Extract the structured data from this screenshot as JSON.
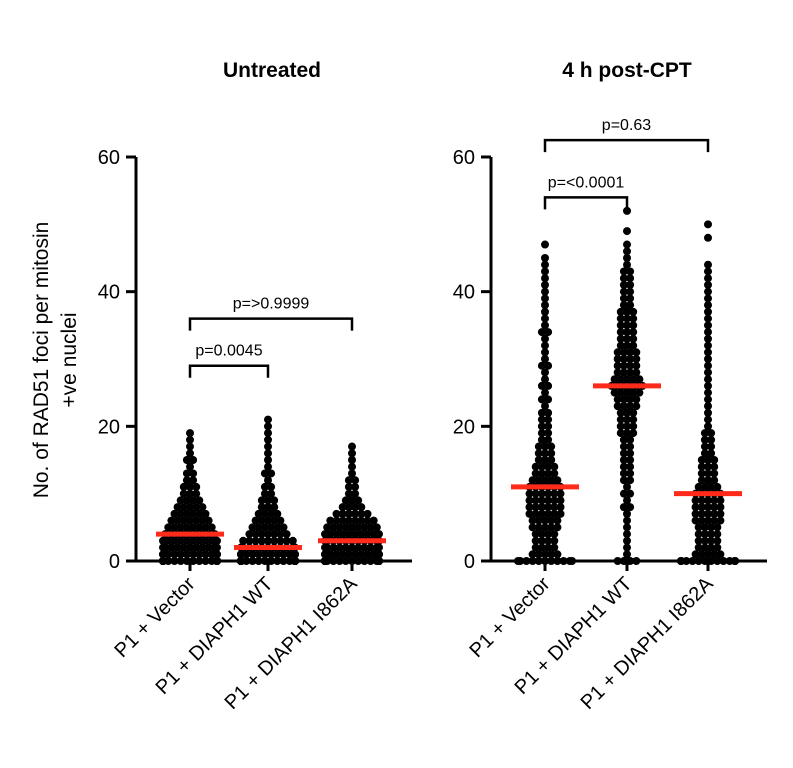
{
  "chart_data": {
    "type": "scatter",
    "ylabel": "No. of RAD51 foci per mitosin +ve nuclei",
    "ylabel_lines": [
      "No. of RAD51 foci per mitosin",
      "+ve nuclei"
    ],
    "ylim": [
      0,
      60
    ],
    "yticks": [
      0,
      20,
      40,
      60
    ],
    "dot_color": "#000000",
    "median_color": "#ff2a1a",
    "panels": [
      {
        "title": "Untreated",
        "categories": [
          "P1 + Vector",
          "P1 + DIAPH1 WT",
          "P1 + DIAPH1 I862A"
        ],
        "series": [
          {
            "name": "P1 + Vector",
            "median": 4,
            "values": [
              19,
              18,
              17,
              16,
              15,
              15,
              14,
              13,
              13,
              12,
              12,
              11,
              11,
              11,
              10,
              10,
              10,
              9,
              9,
              9,
              9,
              8,
              8,
              8,
              8,
              8,
              7,
              7,
              7,
              7,
              7,
              7,
              6,
              6,
              6,
              6,
              6,
              6,
              6,
              5,
              5,
              5,
              5,
              5,
              5,
              5,
              5,
              4,
              4,
              4,
              4,
              4,
              4,
              4,
              4,
              4,
              3,
              3,
              3,
              3,
              3,
              3,
              3,
              3,
              3,
              3,
              2,
              2,
              2,
              2,
              2,
              2,
              2,
              2,
              2,
              2,
              2,
              1,
              1,
              1,
              1,
              1,
              1,
              1,
              1,
              1,
              1,
              1,
              1,
              0,
              0,
              0,
              0,
              0,
              0,
              0,
              0,
              0,
              0,
              0,
              0,
              0,
              0,
              0,
              0,
              0,
              0,
              0,
              0,
              0,
              0
            ]
          },
          {
            "name": "P1 + DIAPH1 WT",
            "median": 2,
            "values": [
              21,
              20,
              19,
              18,
              17,
              16,
              15,
              14,
              13,
              13,
              12,
              11,
              11,
              10,
              10,
              9,
              9,
              9,
              8,
              8,
              8,
              7,
              7,
              7,
              7,
              6,
              6,
              6,
              6,
              6,
              5,
              5,
              5,
              5,
              5,
              5,
              4,
              4,
              4,
              4,
              4,
              4,
              4,
              3,
              3,
              3,
              3,
              3,
              3,
              3,
              3,
              3,
              2,
              2,
              2,
              2,
              2,
              2,
              2,
              2,
              2,
              2,
              2,
              1,
              1,
              1,
              1,
              1,
              1,
              1,
              1,
              1,
              1,
              1,
              1,
              1,
              1,
              0,
              0,
              0,
              0,
              0,
              0,
              0,
              0,
              0,
              0,
              0,
              0,
              0,
              0,
              0,
              0,
              0,
              0,
              0,
              0,
              0,
              0,
              0,
              0,
              0,
              0,
              0,
              0,
              0,
              0,
              0,
              0,
              0,
              0,
              0,
              0,
              0,
              0
            ]
          },
          {
            "name": "P1 + DIAPH1 I862A",
            "median": 3,
            "values": [
              17,
              16,
              15,
              14,
              13,
              12,
              12,
              11,
              11,
              10,
              10,
              9,
              9,
              9,
              8,
              8,
              8,
              8,
              7,
              7,
              7,
              7,
              7,
              7,
              6,
              6,
              6,
              6,
              6,
              6,
              6,
              6,
              5,
              5,
              5,
              5,
              5,
              5,
              5,
              5,
              5,
              4,
              4,
              4,
              4,
              4,
              4,
              4,
              4,
              4,
              4,
              3,
              3,
              3,
              3,
              3,
              3,
              3,
              3,
              3,
              3,
              3,
              2,
              2,
              2,
              2,
              2,
              2,
              2,
              2,
              2,
              2,
              2,
              1,
              1,
              1,
              1,
              1,
              1,
              1,
              1,
              1,
              1,
              1,
              1,
              0,
              0,
              0,
              0,
              0,
              0,
              0,
              0,
              0,
              0,
              0,
              0,
              0,
              0,
              0,
              0,
              0,
              0,
              0,
              0,
              0,
              0,
              0
            ]
          }
        ],
        "comparisons": [
          {
            "from": 0,
            "to": 1,
            "label": "p=0.0045",
            "y": 29
          },
          {
            "from": 0,
            "to": 2,
            "label": "p=>0.9999",
            "y": 36
          }
        ]
      },
      {
        "title": "4 h post-CPT",
        "categories": [
          "P1 + Vector",
          "P1 + DIAPH1 WT",
          "P1 + DIAPH1 I862A"
        ],
        "series": [
          {
            "name": "P1 + Vector",
            "median": 11,
            "values": [
              47,
              45,
              44,
              43,
              42,
              41,
              40,
              39,
              38,
              37,
              36,
              35,
              34,
              34,
              33,
              32,
              31,
              30,
              29,
              29,
              28,
              27,
              26,
              26,
              25,
              24,
              24,
              23,
              22,
              22,
              21,
              21,
              20,
              20,
              19,
              19,
              18,
              18,
              17,
              17,
              17,
              16,
              16,
              16,
              15,
              15,
              15,
              14,
              14,
              14,
              14,
              13,
              13,
              13,
              13,
              12,
              12,
              12,
              12,
              12,
              11,
              11,
              11,
              11,
              11,
              11,
              10,
              10,
              10,
              10,
              10,
              10,
              9,
              9,
              9,
              9,
              9,
              9,
              8,
              8,
              8,
              8,
              8,
              8,
              7,
              7,
              7,
              7,
              7,
              7,
              6,
              6,
              6,
              6,
              6,
              5,
              5,
              5,
              5,
              5,
              4,
              4,
              4,
              4,
              3,
              3,
              3,
              3,
              2,
              2,
              2,
              2,
              1,
              1,
              1,
              1,
              1,
              0,
              0,
              0,
              0,
              0,
              0,
              0,
              0,
              0,
              0,
              0
            ]
          },
          {
            "name": "P1 + DIAPH1 WT",
            "median": 26,
            "values": [
              52,
              49,
              47,
              46,
              45,
              44,
              43,
              43,
              42,
              42,
              41,
              41,
              40,
              40,
              39,
              39,
              38,
              38,
              37,
              37,
              37,
              36,
              36,
              36,
              35,
              35,
              35,
              34,
              34,
              34,
              33,
              33,
              33,
              32,
              32,
              32,
              31,
              31,
              31,
              31,
              30,
              30,
              30,
              30,
              29,
              29,
              29,
              29,
              28,
              28,
              28,
              28,
              27,
              27,
              27,
              27,
              27,
              26,
              26,
              26,
              26,
              26,
              26,
              25,
              25,
              25,
              25,
              25,
              24,
              24,
              24,
              24,
              23,
              23,
              23,
              23,
              22,
              22,
              22,
              21,
              21,
              21,
              20,
              20,
              20,
              19,
              19,
              19,
              18,
              18,
              17,
              17,
              16,
              16,
              15,
              15,
              14,
              14,
              13,
              13,
              12,
              12,
              11,
              10,
              10,
              9,
              8,
              8,
              7,
              6,
              5,
              4,
              3,
              2,
              1,
              0,
              0,
              0,
              0
            ]
          },
          {
            "name": "P1 + DIAPH1 I862A",
            "median": 10,
            "values": [
              50,
              48,
              44,
              43,
              42,
              41,
              40,
              39,
              38,
              37,
              36,
              35,
              34,
              33,
              32,
              31,
              30,
              29,
              28,
              27,
              26,
              25,
              24,
              23,
              22,
              21,
              20,
              19,
              19,
              18,
              18,
              17,
              17,
              16,
              16,
              15,
              15,
              15,
              14,
              14,
              14,
              13,
              13,
              13,
              12,
              12,
              12,
              11,
              11,
              11,
              11,
              10,
              10,
              10,
              10,
              10,
              9,
              9,
              9,
              9,
              9,
              8,
              8,
              8,
              8,
              8,
              7,
              7,
              7,
              7,
              7,
              6,
              6,
              6,
              6,
              6,
              5,
              5,
              5,
              5,
              4,
              4,
              4,
              4,
              3,
              3,
              3,
              3,
              2,
              2,
              2,
              2,
              1,
              1,
              1,
              1,
              1,
              0,
              0,
              0,
              0,
              0,
              0,
              0,
              0,
              0,
              0,
              0,
              0,
              0,
              0
            ]
          }
        ],
        "comparisons": [
          {
            "from": 0,
            "to": 1,
            "label": "p=<0.0001",
            "y": 54
          },
          {
            "from": 0,
            "to": 2,
            "label": "p=0.63",
            "y": 62.5
          }
        ]
      }
    ]
  }
}
